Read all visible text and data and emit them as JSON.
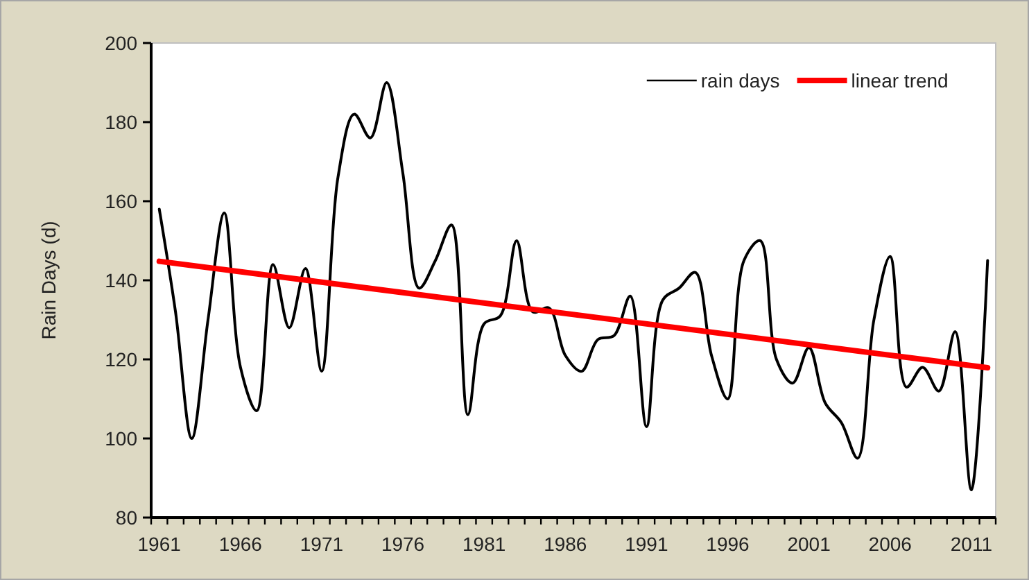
{
  "chart_data": {
    "type": "line",
    "ylabel": "Rain Days (d)",
    "xlim": [
      1960.5,
      2012.5
    ],
    "xticks": [
      1961,
      1966,
      1971,
      1976,
      1981,
      1986,
      1991,
      1996,
      2001,
      2006,
      2011
    ],
    "ylim": [
      80,
      200
    ],
    "yticks": [
      80,
      100,
      120,
      140,
      160,
      180,
      200
    ],
    "grid": false,
    "legend": "top right",
    "series": [
      {
        "name": "rain days",
        "color": "#000000",
        "x": [
          1961,
          1962,
          1963,
          1964,
          1965,
          1966,
          1967,
          1968,
          1969,
          1970,
          1971,
          1972,
          1973,
          1974,
          1975,
          1976,
          1977,
          1978,
          1979,
          1980,
          1981,
          1982,
          1983,
          1984,
          1985,
          1986,
          1987,
          1988,
          1989,
          1990,
          1991,
          1992,
          1993,
          1994,
          1995,
          1996,
          1997,
          1998,
          1999,
          2000,
          2001,
          2002,
          2003,
          2004,
          2005,
          2006,
          2007,
          2008,
          2009,
          2010,
          2011,
          2012
        ],
        "values": [
          158,
          132,
          100,
          130,
          157,
          118,
          107,
          144,
          128,
          143,
          117,
          166,
          182,
          176,
          190,
          167,
          138,
          145,
          154,
          106,
          129,
          131,
          150,
          132,
          133,
          121,
          117,
          125,
          126,
          136,
          103,
          135,
          138,
          142,
          121,
          110,
          145,
          150,
          120,
          114,
          123,
          109,
          104,
          95,
          130,
          146,
          113,
          118,
          112,
          127,
          87,
          145
        ]
      },
      {
        "name": "linear trend",
        "color": "#ff0000",
        "x": [
          1961,
          2012
        ],
        "values": [
          144.8,
          117.9
        ]
      }
    ]
  }
}
